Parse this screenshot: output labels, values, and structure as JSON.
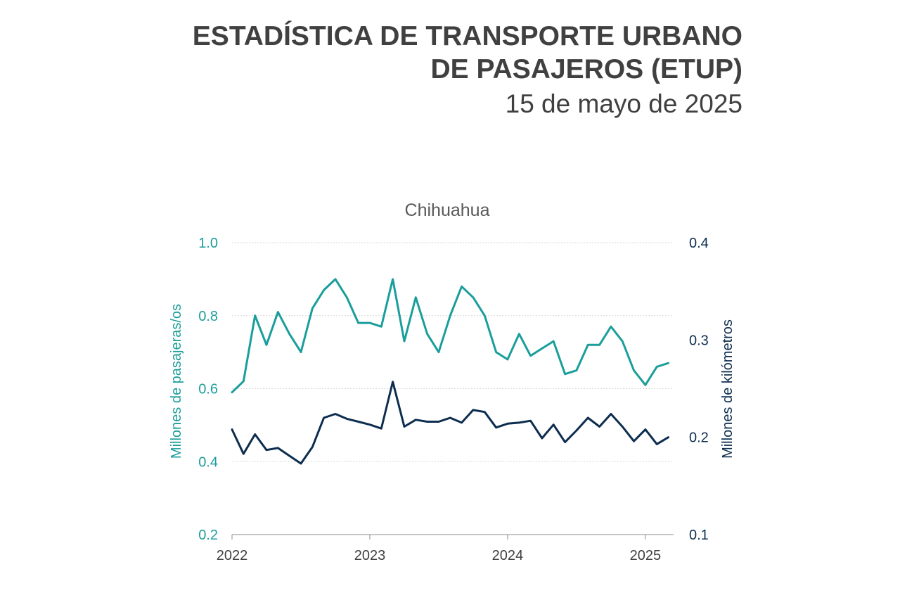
{
  "header": {
    "title_line1": "ESTADÍSTICA DE TRANSPORTE URBANO",
    "title_line2": "DE PASAJEROS (ETUP)",
    "date": "15 de mayo de 2025"
  },
  "colors": {
    "teal": "#1a9e9b",
    "navy": "#0d2d4f",
    "text": "#404040",
    "grid": "#d9d9d9"
  },
  "chart_data": {
    "type": "line",
    "title": "Chihuahua",
    "xlabel": "",
    "ylabel_left": "Millones de pasajeras/os",
    "ylabel_right": "Millones de kilómetros",
    "ylim_left": [
      0.2,
      1.0
    ],
    "ylim_right": [
      0.1,
      0.4
    ],
    "yticks_left": [
      "1.0",
      "0.8",
      "0.6",
      "0.4",
      "0.2"
    ],
    "yticks_right": [
      "0.4",
      "0.3",
      "0.2",
      "0.1"
    ],
    "xticks": [
      "2022",
      "2023",
      "2024",
      "2025"
    ],
    "x_start": "2022-01",
    "grid": "horizontal",
    "series": [
      {
        "name": "Millones de pasajeras/os",
        "axis": "left",
        "color": "#1a9e9b",
        "values": [
          0.59,
          0.62,
          0.8,
          0.72,
          0.81,
          0.75,
          0.7,
          0.82,
          0.87,
          0.9,
          0.85,
          0.78,
          0.78,
          0.77,
          0.9,
          0.73,
          0.85,
          0.75,
          0.7,
          0.8,
          0.88,
          0.85,
          0.8,
          0.7,
          0.68,
          0.75,
          0.69,
          0.71,
          0.73,
          0.64,
          0.65,
          0.72,
          0.72,
          0.77,
          0.73,
          0.65,
          0.61,
          0.66,
          0.67
        ]
      },
      {
        "name": "Millones de kilómetros",
        "axis": "right",
        "color": "#0d2d4f",
        "values": [
          0.208,
          0.183,
          0.203,
          0.187,
          0.189,
          0.181,
          0.173,
          0.19,
          0.22,
          0.224,
          0.219,
          0.216,
          0.213,
          0.209,
          0.257,
          0.211,
          0.218,
          0.216,
          0.216,
          0.22,
          0.215,
          0.228,
          0.226,
          0.21,
          0.214,
          0.215,
          0.217,
          0.199,
          0.213,
          0.195,
          0.207,
          0.22,
          0.211,
          0.224,
          0.211,
          0.196,
          0.208,
          0.193,
          0.2
        ]
      }
    ]
  }
}
